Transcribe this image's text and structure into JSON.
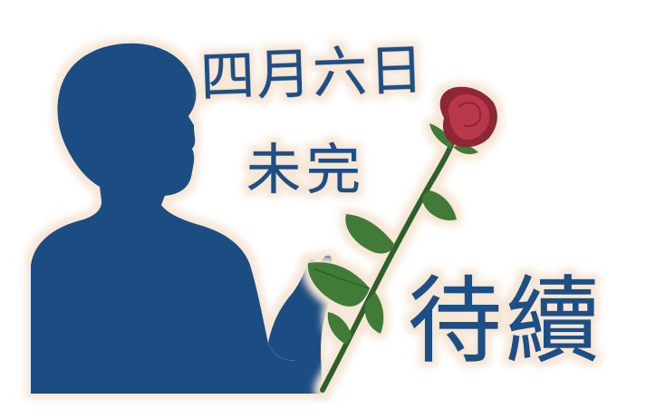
{
  "line1": "四月六日",
  "line2": "未完",
  "line3": "待續",
  "colors": {
    "silhouette": "#1a4d82",
    "text": "#1e4f86",
    "rose": "#b8374c",
    "rose_dark": "#8e2536",
    "leaf": "#3f7c37",
    "leaf_dark": "#2e612a",
    "glow": "#f6e7d6"
  },
  "icons": {
    "figure": "person-silhouette",
    "flower": "rose"
  }
}
